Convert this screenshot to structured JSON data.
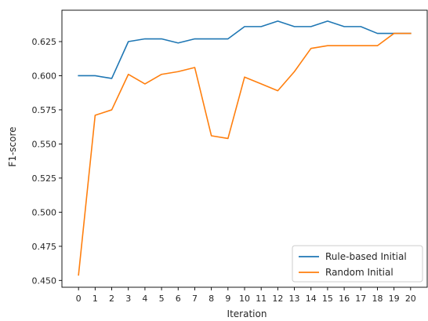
{
  "chart_data": {
    "type": "line",
    "title": "",
    "xlabel": "Iteration",
    "ylabel": "F1-score",
    "x": [
      0,
      1,
      2,
      3,
      4,
      5,
      6,
      7,
      8,
      9,
      10,
      11,
      12,
      13,
      14,
      15,
      16,
      17,
      18,
      19,
      20
    ],
    "xlim": [
      -1,
      21
    ],
    "ylim": [
      0.445,
      0.648
    ],
    "yticks": [
      0.45,
      0.475,
      0.5,
      0.525,
      0.55,
      0.575,
      0.6,
      0.625
    ],
    "ytick_labels": [
      "0.450",
      "0.475",
      "0.500",
      "0.525",
      "0.550",
      "0.575",
      "0.600",
      "0.625"
    ],
    "grid": false,
    "legend_position": "lower-right",
    "series": [
      {
        "name": "Rule-based Initial",
        "color": "#1f77b4",
        "values": [
          0.6,
          0.6,
          0.598,
          0.625,
          0.627,
          0.627,
          0.624,
          0.627,
          0.627,
          0.627,
          0.636,
          0.636,
          0.64,
          0.636,
          0.636,
          0.64,
          0.636,
          0.636,
          0.631,
          0.631,
          0.631
        ]
      },
      {
        "name": "Random Initial",
        "color": "#ff7f0e",
        "values": [
          0.454,
          0.571,
          0.575,
          0.601,
          0.594,
          0.601,
          0.603,
          0.606,
          0.556,
          0.554,
          0.599,
          0.594,
          0.589,
          0.603,
          0.62,
          0.622,
          0.622,
          0.622,
          0.622,
          0.631,
          0.631
        ]
      }
    ]
  }
}
